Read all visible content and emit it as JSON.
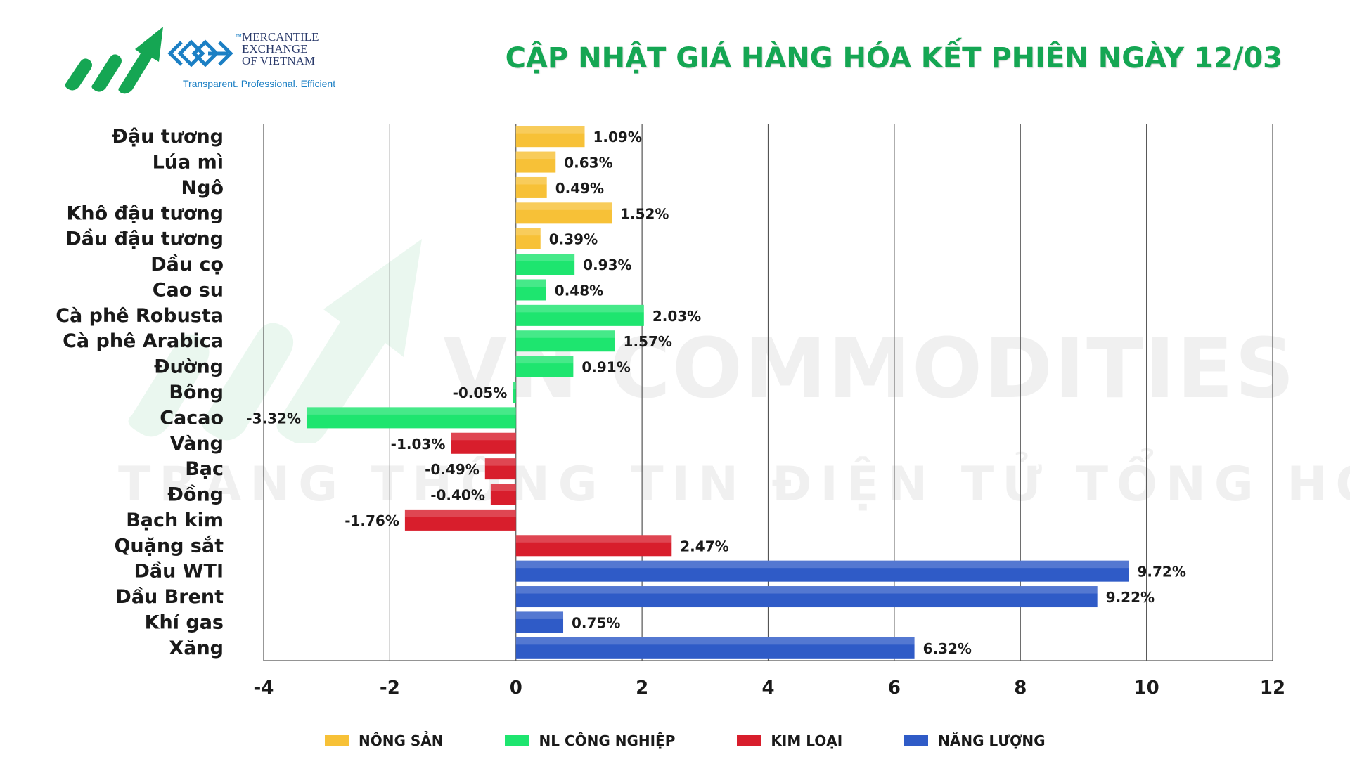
{
  "header": {
    "title": "CẬP NHẬT GIÁ HÀNG HÓA KẾT PHIÊN NGÀY 12/03",
    "logo": {
      "line1": "MERCANTILE",
      "line2": "EXCHANGE",
      "line3": "OF VIETNAM",
      "tm": "™",
      "tagline": "Transparent. Professional. Efficient"
    }
  },
  "watermark": {
    "line1": "VN COMMODITIES",
    "line2": "TRANG THÔNG TIN ĐIỆN TỬ TỔNG HỢP"
  },
  "colors": {
    "nong_san": "#f7c137",
    "nl_cong_nghiep": "#1ee56f",
    "kim_loai": "#d81e2c",
    "nang_luong": "#2f5bc7",
    "title": "#15a653",
    "logo_blue": "#1b7fc4"
  },
  "chart_data": {
    "type": "bar",
    "orientation": "horizontal",
    "xlim": [
      -4,
      12
    ],
    "xticks": [
      -4,
      -2,
      0,
      2,
      4,
      6,
      8,
      10,
      12
    ],
    "grid": "vertical",
    "legend_position": "bottom",
    "legend": [
      {
        "name": "NÔNG SẢN",
        "color": "#f7c137"
      },
      {
        "name": "NL CÔNG NGHIỆP",
        "color": "#1ee56f"
      },
      {
        "name": "KIM LOẠI",
        "color": "#d81e2c"
      },
      {
        "name": "NĂNG LƯỢNG",
        "color": "#2f5bc7"
      }
    ],
    "items": [
      {
        "category": "Đậu tương",
        "value": 1.09,
        "label": "1.09%",
        "group": 0
      },
      {
        "category": "Lúa mì",
        "value": 0.63,
        "label": "0.63%",
        "group": 0
      },
      {
        "category": "Ngô",
        "value": 0.49,
        "label": "0.49%",
        "group": 0
      },
      {
        "category": "Khô đậu tương",
        "value": 1.52,
        "label": "1.52%",
        "group": 0
      },
      {
        "category": "Dầu đậu tương",
        "value": 0.39,
        "label": "0.39%",
        "group": 0
      },
      {
        "category": "Dầu cọ",
        "value": 0.93,
        "label": "0.93%",
        "group": 1
      },
      {
        "category": "Cao su",
        "value": 0.48,
        "label": "0.48%",
        "group": 1
      },
      {
        "category": "Cà phê Robusta",
        "value": 2.03,
        "label": "2.03%",
        "group": 1
      },
      {
        "category": "Cà phê Arabica",
        "value": 1.57,
        "label": "1.57%",
        "group": 1
      },
      {
        "category": "Đường",
        "value": 0.91,
        "label": "0.91%",
        "group": 1
      },
      {
        "category": "Bông",
        "value": -0.05,
        "label": "-0.05%",
        "group": 1
      },
      {
        "category": "Cacao",
        "value": -3.32,
        "label": "-3.32%",
        "group": 1
      },
      {
        "category": "Vàng",
        "value": -1.03,
        "label": "-1.03%",
        "group": 2
      },
      {
        "category": "Bạc",
        "value": -0.49,
        "label": "-0.49%",
        "group": 2
      },
      {
        "category": "Đồng",
        "value": -0.4,
        "label": "-0.40%",
        "group": 2
      },
      {
        "category": "Bạch kim",
        "value": -1.76,
        "label": "-1.76%",
        "group": 2
      },
      {
        "category": "Quặng sắt",
        "value": 2.47,
        "label": "2.47%",
        "group": 2
      },
      {
        "category": "Dầu WTI",
        "value": 9.72,
        "label": "9.72%",
        "group": 3
      },
      {
        "category": "Dầu Brent",
        "value": 9.22,
        "label": "9.22%",
        "group": 3
      },
      {
        "category": "Khí gas",
        "value": 0.75,
        "label": "0.75%",
        "group": 3
      },
      {
        "category": "Xăng",
        "value": 6.32,
        "label": "6.32%",
        "group": 3
      }
    ]
  }
}
